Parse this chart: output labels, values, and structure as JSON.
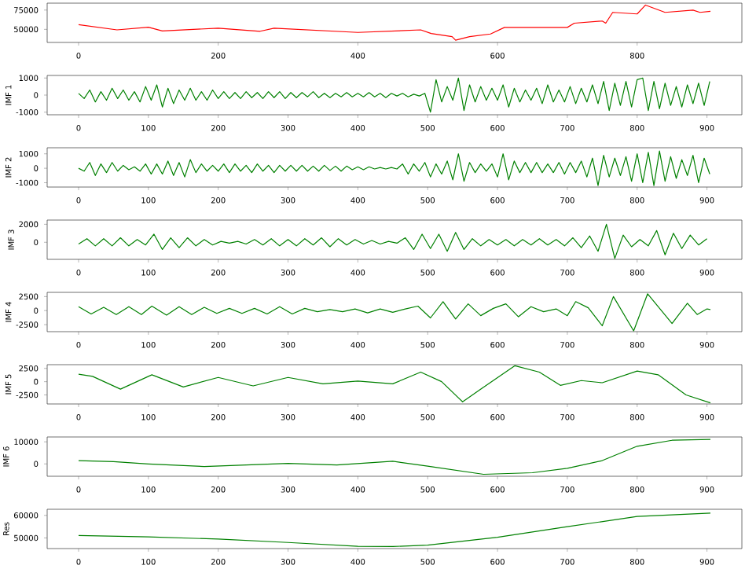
{
  "chart_data": [
    {
      "type": "line",
      "xlim": [
        -45,
        950
      ],
      "ylim": [
        33000,
        84000
      ],
      "xticks": [
        0,
        200,
        400,
        600,
        800
      ],
      "yticks": [
        50000,
        75000
      ],
      "grid": false,
      "series": [
        {
          "color": "#ff0000",
          "x": [
            0,
            55,
            100,
            120,
            200,
            260,
            280,
            400,
            490,
            505,
            535,
            540,
            560,
            590,
            610,
            700,
            710,
            750,
            755,
            765,
            800,
            812,
            840,
            880,
            890,
            905
          ],
          "values": [
            56000,
            49300,
            52700,
            48000,
            51500,
            47500,
            51500,
            46000,
            49300,
            44600,
            40500,
            36000,
            40500,
            44000,
            52500,
            52500,
            58000,
            60800,
            58000,
            72000,
            70000,
            81500,
            72000,
            75000,
            72000,
            73500
          ]
        }
      ]
    },
    {
      "type": "line",
      "ylabel": "IMF 1",
      "xlim": [
        -45,
        950
      ],
      "ylim": [
        -1150,
        1150
      ],
      "xticks": [
        0,
        100,
        200,
        300,
        400,
        500,
        600,
        700,
        800,
        900
      ],
      "yticks": [
        -1000,
        0,
        1000
      ],
      "grid": false,
      "series": [
        {
          "color": "#008000",
          "x": [
            0,
            8,
            16,
            24,
            32,
            40,
            48,
            56,
            64,
            72,
            80,
            88,
            96,
            104,
            112,
            120,
            128,
            136,
            144,
            152,
            160,
            168,
            176,
            184,
            192,
            200,
            208,
            216,
            224,
            232,
            240,
            248,
            256,
            264,
            272,
            280,
            288,
            296,
            304,
            312,
            320,
            328,
            336,
            344,
            352,
            360,
            368,
            376,
            384,
            392,
            400,
            408,
            416,
            424,
            432,
            440,
            448,
            456,
            464,
            472,
            480,
            488,
            496,
            504,
            512,
            520,
            528,
            536,
            544,
            552,
            560,
            568,
            576,
            584,
            592,
            600,
            608,
            616,
            624,
            632,
            640,
            648,
            656,
            664,
            672,
            680,
            688,
            696,
            704,
            712,
            720,
            728,
            736,
            744,
            752,
            760,
            768,
            776,
            784,
            792,
            800,
            808,
            816,
            824,
            832,
            840,
            848,
            856,
            864,
            872,
            880,
            888,
            896,
            904
          ],
          "values": [
            100,
            -200,
            300,
            -400,
            200,
            -300,
            400,
            -200,
            300,
            -300,
            200,
            -400,
            500,
            -300,
            600,
            -700,
            400,
            -500,
            300,
            -300,
            400,
            -300,
            200,
            -300,
            300,
            -200,
            200,
            -200,
            150,
            -200,
            200,
            -150,
            150,
            -200,
            200,
            -150,
            200,
            -200,
            150,
            -150,
            150,
            -100,
            200,
            -150,
            100,
            -150,
            100,
            -100,
            150,
            -100,
            100,
            -100,
            150,
            -100,
            100,
            -150,
            100,
            -50,
            100,
            -100,
            50,
            -50,
            100,
            -1000,
            900,
            -400,
            500,
            -300,
            1000,
            -900,
            600,
            -400,
            500,
            -300,
            400,
            -300,
            600,
            -700,
            400,
            -400,
            300,
            -300,
            400,
            -500,
            600,
            -400,
            300,
            -400,
            500,
            -500,
            400,
            -400,
            600,
            -500,
            800,
            -900,
            700,
            -600,
            800,
            -700,
            900,
            1000,
            -900,
            800,
            -800,
            700,
            -600,
            500,
            -700,
            600,
            -500,
            700,
            -600,
            800
          ]
        }
      ]
    },
    {
      "type": "line",
      "ylabel": "IMF 2",
      "xlim": [
        -45,
        950
      ],
      "ylim": [
        -1300,
        1420
      ],
      "xticks": [
        0,
        100,
        200,
        300,
        400,
        500,
        600,
        700,
        800,
        900
      ],
      "yticks": [
        -1000,
        0,
        1000
      ],
      "grid": false,
      "series": [
        {
          "color": "#008000",
          "x": [
            0,
            8,
            16,
            24,
            32,
            40,
            48,
            56,
            64,
            72,
            80,
            88,
            96,
            104,
            112,
            120,
            128,
            136,
            144,
            152,
            160,
            168,
            176,
            184,
            192,
            200,
            208,
            216,
            224,
            232,
            240,
            248,
            256,
            264,
            272,
            280,
            288,
            296,
            304,
            312,
            320,
            328,
            336,
            344,
            352,
            360,
            368,
            376,
            384,
            392,
            400,
            408,
            416,
            424,
            432,
            440,
            448,
            456,
            464,
            472,
            480,
            488,
            496,
            504,
            512,
            520,
            528,
            536,
            544,
            552,
            560,
            568,
            576,
            584,
            592,
            600,
            608,
            616,
            624,
            632,
            640,
            648,
            656,
            664,
            672,
            680,
            688,
            696,
            704,
            712,
            720,
            728,
            736,
            744,
            752,
            760,
            768,
            776,
            784,
            792,
            800,
            808,
            816,
            824,
            832,
            840,
            848,
            856,
            864,
            872,
            880,
            888,
            896,
            904
          ],
          "values": [
            0,
            -200,
            400,
            -500,
            300,
            -300,
            400,
            -200,
            200,
            -100,
            100,
            -200,
            300,
            -400,
            300,
            -400,
            500,
            -500,
            400,
            -600,
            600,
            -300,
            300,
            -200,
            200,
            -200,
            300,
            -300,
            300,
            -200,
            200,
            -300,
            300,
            -200,
            200,
            -300,
            200,
            -200,
            200,
            -200,
            200,
            -200,
            150,
            -200,
            200,
            -150,
            150,
            -200,
            150,
            -100,
            100,
            -100,
            100,
            -50,
            50,
            -50,
            50,
            -50,
            300,
            -400,
            300,
            -200,
            400,
            -600,
            300,
            -400,
            500,
            -800,
            1000,
            -900,
            400,
            -300,
            300,
            -200,
            300,
            -600,
            1000,
            -800,
            500,
            -300,
            400,
            -300,
            400,
            -300,
            300,
            -300,
            400,
            -400,
            400,
            -300,
            500,
            -600,
            700,
            -1200,
            900,
            -600,
            700,
            -500,
            800,
            -900,
            1000,
            -1000,
            1100,
            -1200,
            1200,
            -900,
            800,
            -700,
            600,
            -500,
            900,
            -1000,
            700,
            -400
          ]
        }
      ]
    },
    {
      "type": "line",
      "ylabel": "IMF 3",
      "xlim": [
        -45,
        950
      ],
      "ylim": [
        -1900,
        2470
      ],
      "xticks": [
        0,
        100,
        200,
        300,
        400,
        500,
        600,
        700,
        800,
        900
      ],
      "yticks": [
        0,
        2000
      ],
      "grid": false,
      "series": [
        {
          "color": "#008000",
          "x": [
            0,
            12,
            24,
            36,
            48,
            60,
            72,
            84,
            96,
            108,
            120,
            132,
            144,
            156,
            168,
            180,
            192,
            204,
            216,
            228,
            240,
            252,
            264,
            276,
            288,
            300,
            312,
            324,
            336,
            348,
            360,
            372,
            384,
            396,
            408,
            420,
            432,
            444,
            456,
            468,
            480,
            492,
            504,
            516,
            528,
            540,
            552,
            564,
            576,
            588,
            600,
            612,
            624,
            636,
            648,
            660,
            672,
            684,
            696,
            708,
            720,
            732,
            744,
            756,
            768,
            780,
            792,
            804,
            816,
            828,
            840,
            852,
            864,
            876,
            888,
            900
          ],
          "values": [
            -200,
            400,
            -400,
            400,
            -400,
            500,
            -400,
            300,
            -300,
            900,
            -800,
            500,
            -600,
            500,
            -400,
            300,
            -300,
            100,
            -100,
            100,
            -200,
            300,
            -300,
            400,
            -400,
            300,
            -400,
            400,
            -300,
            500,
            -500,
            400,
            -300,
            300,
            -200,
            200,
            -200,
            100,
            -100,
            500,
            -800,
            900,
            -700,
            900,
            -1000,
            1100,
            -800,
            400,
            -400,
            300,
            -300,
            300,
            -400,
            300,
            -300,
            400,
            -300,
            300,
            -400,
            500,
            -600,
            700,
            -1000,
            2000,
            -1800,
            800,
            -500,
            300,
            -400,
            1300,
            -1400,
            1000,
            -700,
            800,
            -300,
            400
          ]
        }
      ]
    },
    {
      "type": "line",
      "ylabel": "IMF 4",
      "xlim": [
        -45,
        950
      ],
      "ylim": [
        -3750,
        3250
      ],
      "xticks": [
        0,
        100,
        200,
        300,
        400,
        500,
        600,
        700,
        800,
        900
      ],
      "yticks": [
        -2500,
        0,
        2500
      ],
      "grid": false,
      "series": [
        {
          "color": "#008000",
          "x": [
            0,
            18,
            36,
            54,
            72,
            90,
            105,
            126,
            144,
            162,
            180,
            198,
            216,
            234,
            252,
            270,
            288,
            306,
            324,
            342,
            360,
            378,
            396,
            414,
            432,
            450,
            468,
            486,
            504,
            522,
            540,
            558,
            576,
            594,
            612,
            630,
            648,
            666,
            684,
            700,
            712,
            730,
            750,
            766,
            795,
            815,
            850,
            872,
            886,
            900,
            905
          ],
          "values": [
            700,
            -600,
            600,
            -700,
            700,
            -700,
            800,
            -800,
            700,
            -700,
            600,
            -500,
            400,
            -500,
            400,
            -600,
            700,
            -600,
            400,
            -200,
            200,
            -200,
            300,
            -400,
            300,
            -300,
            300,
            800,
            -1300,
            1600,
            -1500,
            1200,
            -900,
            400,
            1200,
            -1100,
            700,
            -200,
            300,
            -900,
            1600,
            500,
            -2700,
            2500,
            -3600,
            3000,
            -2300,
            1300,
            -700,
            300,
            200
          ]
        }
      ]
    },
    {
      "type": "line",
      "ylabel": "IMF 5",
      "xlim": [
        -45,
        950
      ],
      "ylim": [
        -4200,
        3200
      ],
      "xticks": [
        0,
        100,
        200,
        300,
        400,
        500,
        600,
        700,
        800,
        900
      ],
      "yticks": [
        -2500,
        0,
        2500
      ],
      "grid": false,
      "series": [
        {
          "color": "#008000",
          "x": [
            0,
            20,
            60,
            105,
            150,
            200,
            250,
            300,
            350,
            400,
            450,
            490,
            520,
            550,
            575,
            625,
            660,
            690,
            720,
            750,
            800,
            830,
            870,
            905
          ],
          "values": [
            1400,
            1000,
            -1400,
            1300,
            -1000,
            800,
            -800,
            800,
            -400,
            100,
            -400,
            1800,
            0,
            -3800,
            -1500,
            3000,
            1800,
            -700,
            200,
            -200,
            2000,
            1300,
            -2500,
            -4000
          ]
        }
      ]
    },
    {
      "type": "line",
      "ylabel": "IMF 6",
      "xlim": [
        -45,
        950
      ],
      "ylim": [
        -5600,
        12200
      ],
      "xticks": [
        0,
        100,
        200,
        300,
        400,
        500,
        600,
        700,
        800,
        900
      ],
      "yticks": [
        0,
        10000
      ],
      "grid": false,
      "series": [
        {
          "color": "#008000",
          "x": [
            0,
            50,
            100,
            180,
            300,
            370,
            450,
            500,
            580,
            650,
            700,
            750,
            800,
            850,
            905
          ],
          "values": [
            1500,
            1000,
            0,
            -1200,
            200,
            -500,
            1200,
            -1000,
            -4700,
            -4000,
            -2000,
            1500,
            8000,
            10700,
            11100
          ]
        }
      ]
    },
    {
      "type": "line",
      "ylabel": "Res",
      "xlim": [
        -45,
        950
      ],
      "ylim": [
        45300,
        62700
      ],
      "xticks": [
        0,
        100,
        200,
        300,
        400,
        500,
        600,
        700,
        800,
        900
      ],
      "yticks": [
        50000,
        60000
      ],
      "grid": false,
      "series": [
        {
          "color": "#008000",
          "x": [
            0,
            100,
            200,
            300,
            400,
            450,
            500,
            600,
            700,
            800,
            905
          ],
          "values": [
            51100,
            50500,
            49500,
            48000,
            46300,
            46200,
            46800,
            50300,
            55000,
            59500,
            61000
          ]
        }
      ]
    }
  ]
}
